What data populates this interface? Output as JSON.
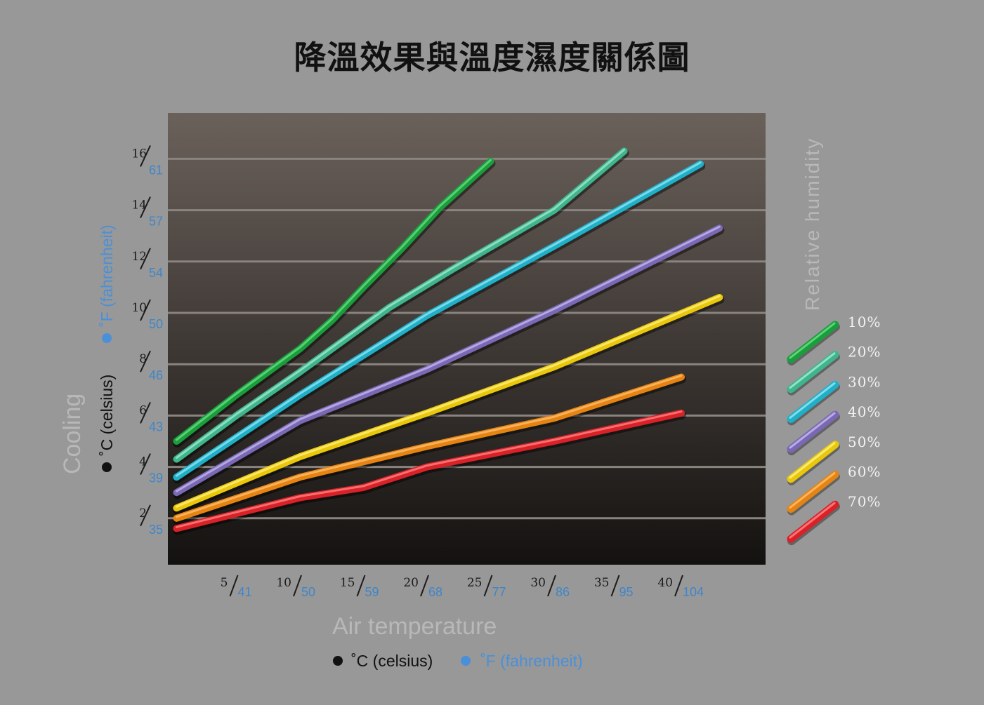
{
  "title": "降溫效果與溫度濕度關係圖",
  "colors": {
    "background": "#989898",
    "plot_top": "#6b615b",
    "plot_bottom": "#141210",
    "gridline": "#8a8480",
    "celsius_text": "#1c1c1c",
    "fahrenheit_text": "#3f86c9"
  },
  "chart_data": {
    "type": "line",
    "title": "降溫效果與溫度濕度關係圖",
    "xlabel": "Air temperature",
    "ylabel": "Cooling",
    "x_units": {
      "celsius": "˚C (celsius)",
      "fahrenheit": "˚F (fahrenheit)"
    },
    "y_units": {
      "celsius": "˚C (celsius)",
      "fahrenheit": "˚F (fahrenheit)"
    },
    "legend_title": "Relative humidity",
    "legend_position": "right",
    "xlim": [
      0,
      47
    ],
    "ylim": [
      0,
      17.5
    ],
    "grid": true,
    "x_ticks": [
      {
        "c": "5",
        "f": "41",
        "value": 5
      },
      {
        "c": "10",
        "f": "50",
        "value": 10
      },
      {
        "c": "15",
        "f": "59",
        "value": 15
      },
      {
        "c": "20",
        "f": "68",
        "value": 20
      },
      {
        "c": "25",
        "f": "77",
        "value": 25
      },
      {
        "c": "30",
        "f": "86",
        "value": 30
      },
      {
        "c": "35",
        "f": "95",
        "value": 35
      },
      {
        "c": "40",
        "f": "104",
        "value": 40
      }
    ],
    "y_ticks": [
      {
        "c": "2",
        "f": "35",
        "value": 2
      },
      {
        "c": "4",
        "f": "39",
        "value": 4
      },
      {
        "c": "6",
        "f": "43",
        "value": 6
      },
      {
        "c": "8",
        "f": "46",
        "value": 8
      },
      {
        "c": "10",
        "f": "50",
        "value": 10
      },
      {
        "c": "12",
        "f": "54",
        "value": 12
      },
      {
        "c": "14",
        "f": "57",
        "value": 14
      },
      {
        "c": "16",
        "f": "61",
        "value": 16
      }
    ],
    "series": [
      {
        "name": "10%",
        "color": "#1a9e3c",
        "highlight": "#6fe08b",
        "x": [
          0.3,
          5,
          10,
          12.5,
          15,
          18,
          21,
          25
        ],
        "y": [
          5.0,
          6.8,
          8.6,
          9.7,
          11.0,
          12.5,
          14.1,
          15.9
        ]
      },
      {
        "name": "20%",
        "color": "#3fb58d",
        "highlight": "#a8ecd2",
        "x": [
          0.3,
          5,
          10,
          17,
          22,
          30,
          35.5
        ],
        "y": [
          4.3,
          6.0,
          7.7,
          10.2,
          11.7,
          14.0,
          16.3
        ]
      },
      {
        "name": "30%",
        "color": "#1fb0c8",
        "highlight": "#9be8f4",
        "x": [
          0.3,
          10,
          20,
          30,
          41.5
        ],
        "y": [
          3.6,
          6.8,
          9.9,
          12.6,
          15.8
        ]
      },
      {
        "name": "40%",
        "color": "#7a68b4",
        "highlight": "#c8bdf0",
        "x": [
          0.3,
          10,
          20,
          30,
          43
        ],
        "y": [
          3.0,
          5.8,
          7.8,
          10.1,
          13.3
        ]
      },
      {
        "name": "50%",
        "color": "#e9c80b",
        "highlight": "#fff28a",
        "x": [
          0.3,
          10,
          20,
          30,
          43
        ],
        "y": [
          2.4,
          4.4,
          6.1,
          7.9,
          10.6
        ]
      },
      {
        "name": "60%",
        "color": "#e58412",
        "highlight": "#ffc275",
        "x": [
          0.3,
          10,
          20,
          30,
          40
        ],
        "y": [
          2.0,
          3.6,
          4.8,
          5.9,
          7.5
        ]
      },
      {
        "name": "70%",
        "color": "#d92228",
        "highlight": "#ff8a8a",
        "x": [
          0.3,
          10,
          15,
          20,
          30,
          40
        ],
        "y": [
          1.6,
          2.8,
          3.2,
          4.0,
          5.0,
          6.1
        ]
      }
    ]
  }
}
